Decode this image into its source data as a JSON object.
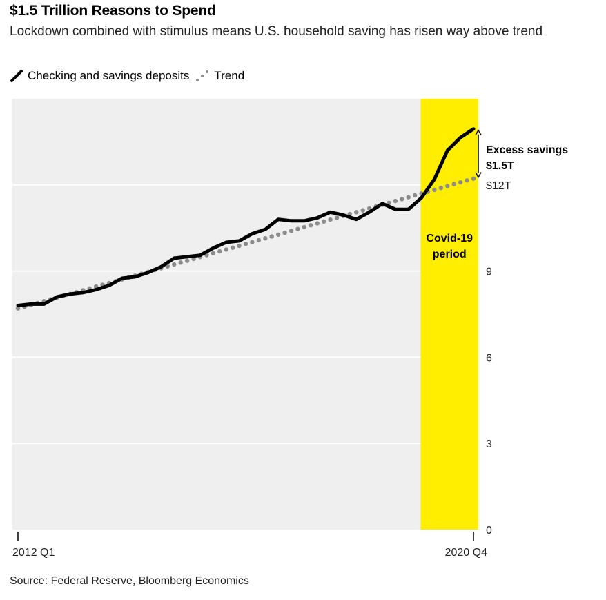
{
  "title": "$1.5 Trillion Reasons to Spend",
  "subtitle": "Lockdown combined with stimulus means U.S. household saving has risen way above trend",
  "legend": [
    {
      "label": "Checking and savings deposits",
      "style": "solid",
      "color": "#000000"
    },
    {
      "label": "Trend",
      "style": "dotted",
      "color": "#8c8c8c"
    }
  ],
  "source": "Source: Federal Reserve, Bloomberg Economics",
  "colors": {
    "plot_bg": "#efefef",
    "highlight": "#ffee00",
    "grid": "#ffffff"
  },
  "chart_data": {
    "type": "line",
    "x_tick_labels": [
      "2012 Q1",
      "2020 Q4"
    ],
    "y_ticks": [
      0,
      3,
      6,
      9,
      12
    ],
    "y_tick_labels": [
      "0",
      "3",
      "6",
      "9",
      "$12T"
    ],
    "ylim": [
      0,
      15
    ],
    "grid": true,
    "highlight": {
      "label": "Covid-19 period",
      "start": "2020 Q1",
      "end": "2020 Q4"
    },
    "annotation": {
      "text": "Excess savings $1.5T",
      "line1": "Excess savings",
      "line2": "$1.5T"
    },
    "x": [
      "2012 Q1",
      "2012 Q2",
      "2012 Q3",
      "2012 Q4",
      "2013 Q1",
      "2013 Q2",
      "2013 Q3",
      "2013 Q4",
      "2014 Q1",
      "2014 Q2",
      "2014 Q3",
      "2014 Q4",
      "2015 Q1",
      "2015 Q2",
      "2015 Q3",
      "2015 Q4",
      "2016 Q1",
      "2016 Q2",
      "2016 Q3",
      "2016 Q4",
      "2017 Q1",
      "2017 Q2",
      "2017 Q3",
      "2017 Q4",
      "2018 Q1",
      "2018 Q2",
      "2018 Q3",
      "2018 Q4",
      "2019 Q1",
      "2019 Q2",
      "2019 Q3",
      "2019 Q4",
      "2020 Q1",
      "2020 Q2",
      "2020 Q3",
      "2020 Q4"
    ],
    "series": [
      {
        "name": "Checking and savings deposits",
        "style": "solid",
        "values": [
          7.8,
          7.85,
          7.85,
          8.1,
          8.2,
          8.25,
          8.35,
          8.5,
          8.75,
          8.8,
          8.95,
          9.15,
          9.45,
          9.5,
          9.55,
          9.8,
          10.0,
          10.05,
          10.3,
          10.45,
          10.8,
          10.75,
          10.75,
          10.85,
          11.05,
          10.95,
          10.8,
          11.05,
          11.35,
          11.15,
          11.15,
          11.55,
          12.2,
          13.2,
          13.65,
          13.95
        ]
      },
      {
        "name": "Trend",
        "style": "dotted",
        "values": [
          7.7,
          7.82,
          7.95,
          8.08,
          8.2,
          8.33,
          8.46,
          8.58,
          8.71,
          8.84,
          8.97,
          9.1,
          9.23,
          9.36,
          9.49,
          9.62,
          9.75,
          9.88,
          10.01,
          10.14,
          10.27,
          10.4,
          10.53,
          10.66,
          10.79,
          10.92,
          11.05,
          11.18,
          11.31,
          11.44,
          11.57,
          11.7,
          11.83,
          11.96,
          12.09,
          12.22
        ]
      }
    ]
  }
}
